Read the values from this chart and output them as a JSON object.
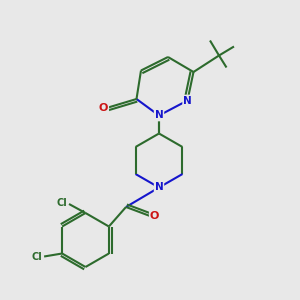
{
  "background_color": "#e8e8e8",
  "bond_color": "#2d6b2d",
  "nitrogen_color": "#1515cc",
  "oxygen_color": "#cc1515",
  "chlorine_color": "#2d6b2d",
  "figsize": [
    3.0,
    3.0
  ],
  "dpi": 100,
  "lw": 1.5,
  "fs": 7.0,
  "xlim": [
    0,
    10
  ],
  "ylim": [
    0,
    10
  ]
}
